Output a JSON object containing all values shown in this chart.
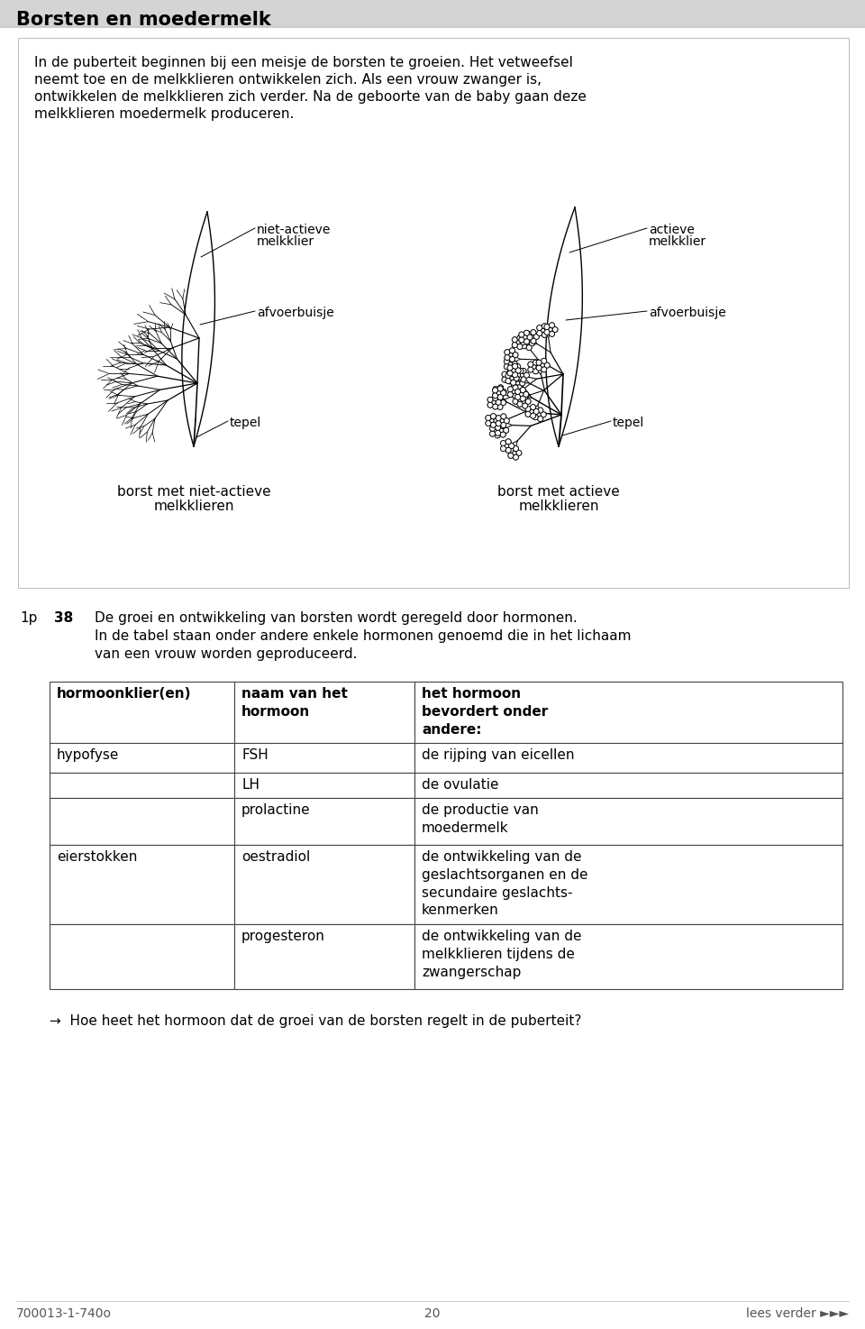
{
  "title": "Borsten en moedermelk",
  "bg_color": "#ffffff",
  "intro_text_lines": [
    "In de puberteit beginnen bij een meisje de borsten te groeien. Het vetweefsel",
    "neemt toe en de melkklieren ontwikkelen zich. Als een vrouw zwanger is,",
    "ontwikkelen de melkklieren zich verder. Na de geboorte van de baby gaan deze",
    "melkklieren moedermelk produceren."
  ],
  "label_niet_actieve": "niet-actieve\nmelkklier",
  "label_afvoerbuisje_l": "afvoerbuisje",
  "label_tepel_l": "tepel",
  "label_borst_l1": "borst met niet-actieve",
  "label_borst_l2": "melkklieren",
  "label_actieve": "actieve\nmelkklier",
  "label_afvoerbuisje_r": "afvoerbuisje",
  "label_tepel_r": "tepel",
  "label_borst_r1": "borst met actieve",
  "label_borst_r2": "melkklieren",
  "q_points": "1p",
  "q_number": "38",
  "q_text1": "De groei en ontwikkeling van borsten wordt geregeld door hormonen.",
  "q_text2a": "In de tabel staan onder andere enkele hormonen genoemd die in het lichaam",
  "q_text2b": "van een vrouw worden geproduceerd.",
  "table_col1_header": "hormoonklier(en)",
  "table_col2_header": "naam van het\nhormoon",
  "table_col3_header": "het hormoon\nbevordert onder\nandere:",
  "table_rows": [
    [
      "hypofyse",
      "FSH",
      "de rijping van eicellen"
    ],
    [
      "",
      "LH",
      "de ovulatie"
    ],
    [
      "",
      "prolactine",
      "de productie van\nmoedermelk"
    ],
    [
      "eierstokken",
      "oestradiol",
      "de ontwikkeling van de\ngeslachtsorganen en de\nsecundaire geslachts-\nkenmerken"
    ],
    [
      "",
      "progesteron",
      "de ontwikkeling van de\nmelkklieren tijdens de\nzwangerschap"
    ]
  ],
  "arrow_q": "→  Hoe heet het hormoon dat de groei van de borsten regelt in de puberteit?",
  "footer_left": "700013-1-740o",
  "footer_center": "20",
  "footer_right": "lees verder ►►►"
}
